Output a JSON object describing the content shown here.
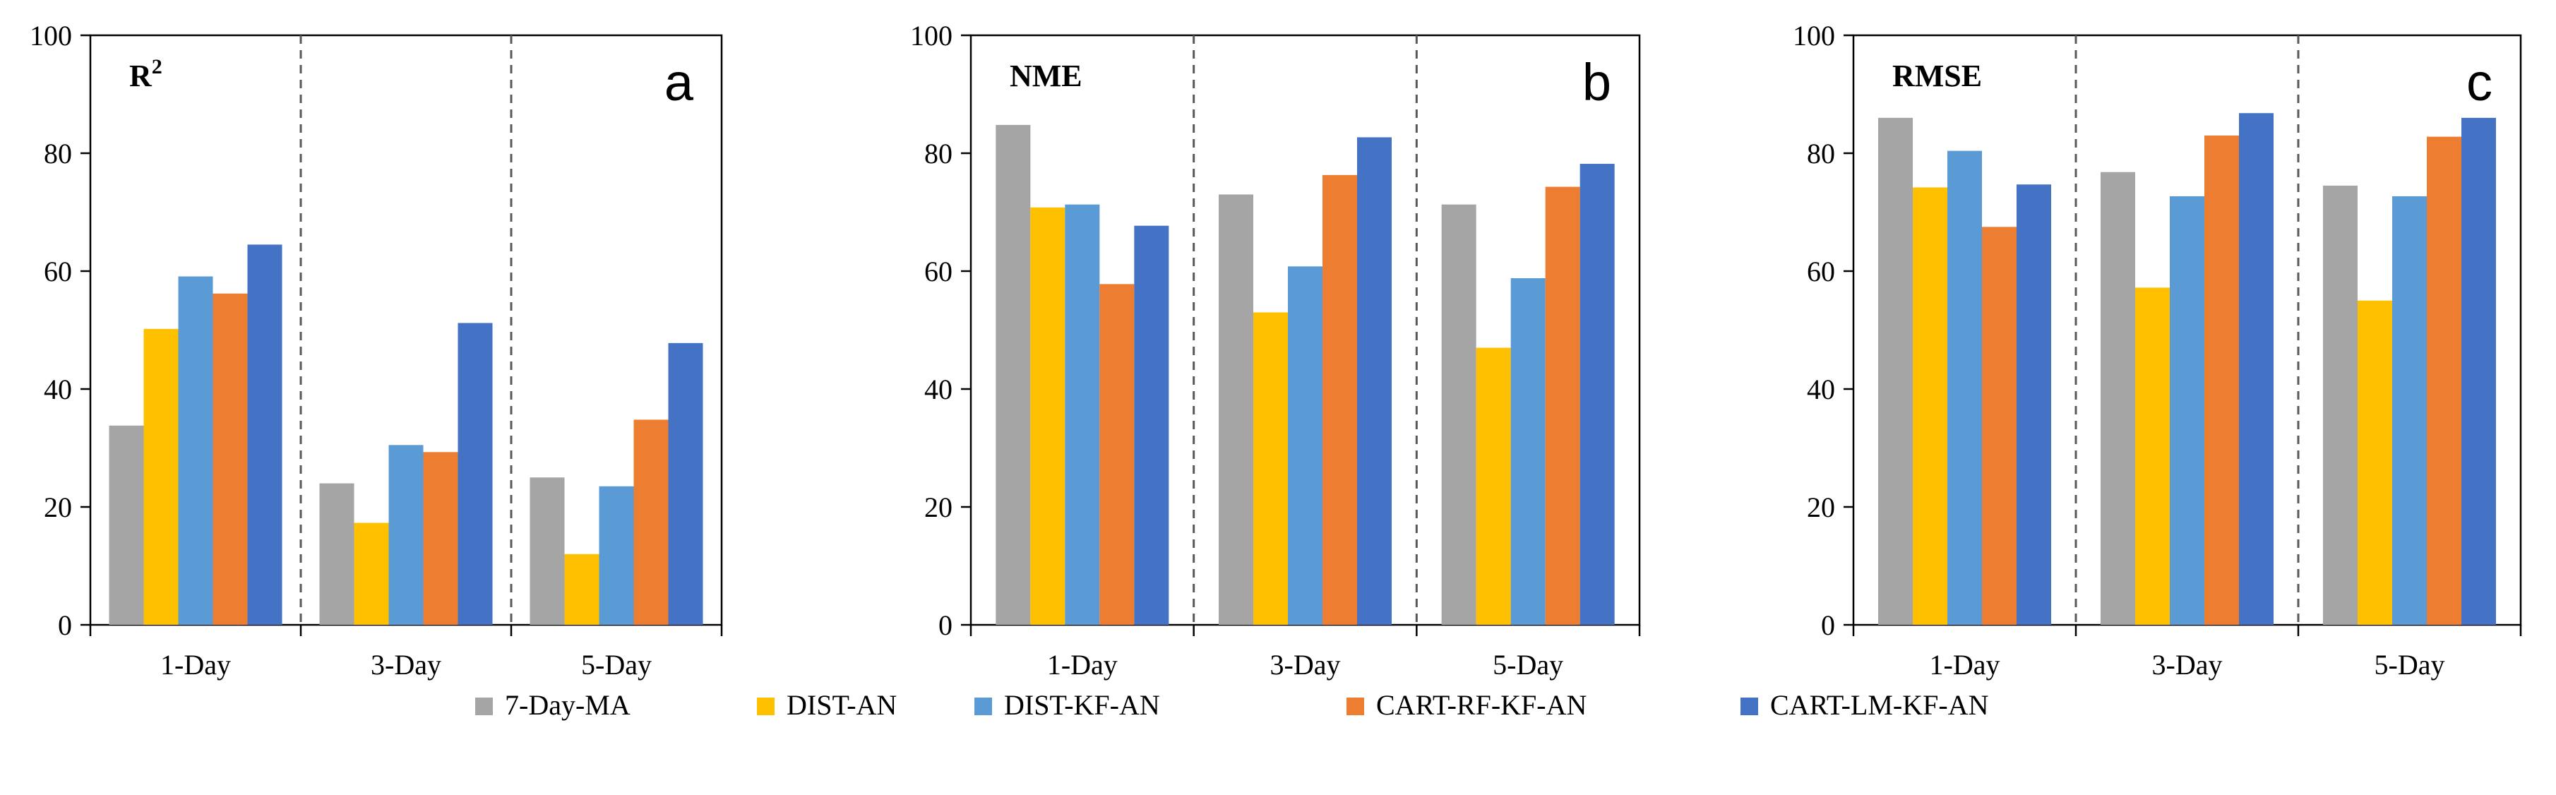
{
  "chart_data": {
    "type": "bar",
    "legend_position": "bottom",
    "colors": {
      "7-Day-MA": "#A5A5A5",
      "DIST-AN": "#FFC000",
      "DIST-KF-AN": "#5B9BD5",
      "CART-RF-KF-AN": "#ED7D31",
      "CART-LM-KF-AN": "#4472C4"
    },
    "series_names": [
      "7-Day-MA",
      "DIST-AN",
      "DIST-KF-AN",
      "CART-RF-KF-AN",
      "CART-LM-KF-AN"
    ],
    "panels": [
      {
        "panel_letter": "a",
        "metric_base": "R",
        "metric_sup": "2",
        "categories": [
          "1-Day",
          "3-Day",
          "5-Day"
        ],
        "ylim": [
          0,
          100
        ],
        "yticks": [
          0,
          20,
          40,
          60,
          80,
          100
        ],
        "series": [
          {
            "name": "7-Day-MA",
            "values": [
              33.8,
              24.0,
              25.0
            ]
          },
          {
            "name": "DIST-AN",
            "values": [
              50.2,
              17.3,
              12.0
            ]
          },
          {
            "name": "DIST-KF-AN",
            "values": [
              59.1,
              30.5,
              23.5
            ]
          },
          {
            "name": "CART-RF-KF-AN",
            "values": [
              56.2,
              29.3,
              34.8
            ]
          },
          {
            "name": "CART-LM-KF-AN",
            "values": [
              64.5,
              51.2,
              47.8
            ]
          }
        ]
      },
      {
        "panel_letter": "b",
        "metric_base": "NME",
        "metric_sup": "",
        "categories": [
          "1-Day",
          "3-Day",
          "5-Day"
        ],
        "ylim": [
          0,
          100
        ],
        "yticks": [
          0,
          20,
          40,
          60,
          80,
          100
        ],
        "series": [
          {
            "name": "7-Day-MA",
            "values": [
              84.8,
              73.0,
              71.3
            ]
          },
          {
            "name": "DIST-AN",
            "values": [
              70.8,
              53.0,
              47.0
            ]
          },
          {
            "name": "DIST-KF-AN",
            "values": [
              71.3,
              60.8,
              58.8
            ]
          },
          {
            "name": "CART-RF-KF-AN",
            "values": [
              57.8,
              76.3,
              74.3
            ]
          },
          {
            "name": "CART-LM-KF-AN",
            "values": [
              67.7,
              82.7,
              78.2
            ]
          }
        ]
      },
      {
        "panel_letter": "c",
        "metric_base": "RMSE",
        "metric_sup": "",
        "categories": [
          "1-Day",
          "3-Day",
          "5-Day"
        ],
        "ylim": [
          0,
          100
        ],
        "yticks": [
          0,
          20,
          40,
          60,
          80,
          100
        ],
        "series": [
          {
            "name": "7-Day-MA",
            "values": [
              86.0,
              76.8,
              74.5
            ]
          },
          {
            "name": "DIST-AN",
            "values": [
              74.2,
              57.2,
              55.0
            ]
          },
          {
            "name": "DIST-KF-AN",
            "values": [
              80.4,
              72.7,
              72.7
            ]
          },
          {
            "name": "CART-RF-KF-AN",
            "values": [
              67.5,
              83.0,
              82.8
            ]
          },
          {
            "name": "CART-LM-KF-AN",
            "values": [
              74.7,
              86.8,
              86.0
            ]
          }
        ]
      }
    ]
  }
}
